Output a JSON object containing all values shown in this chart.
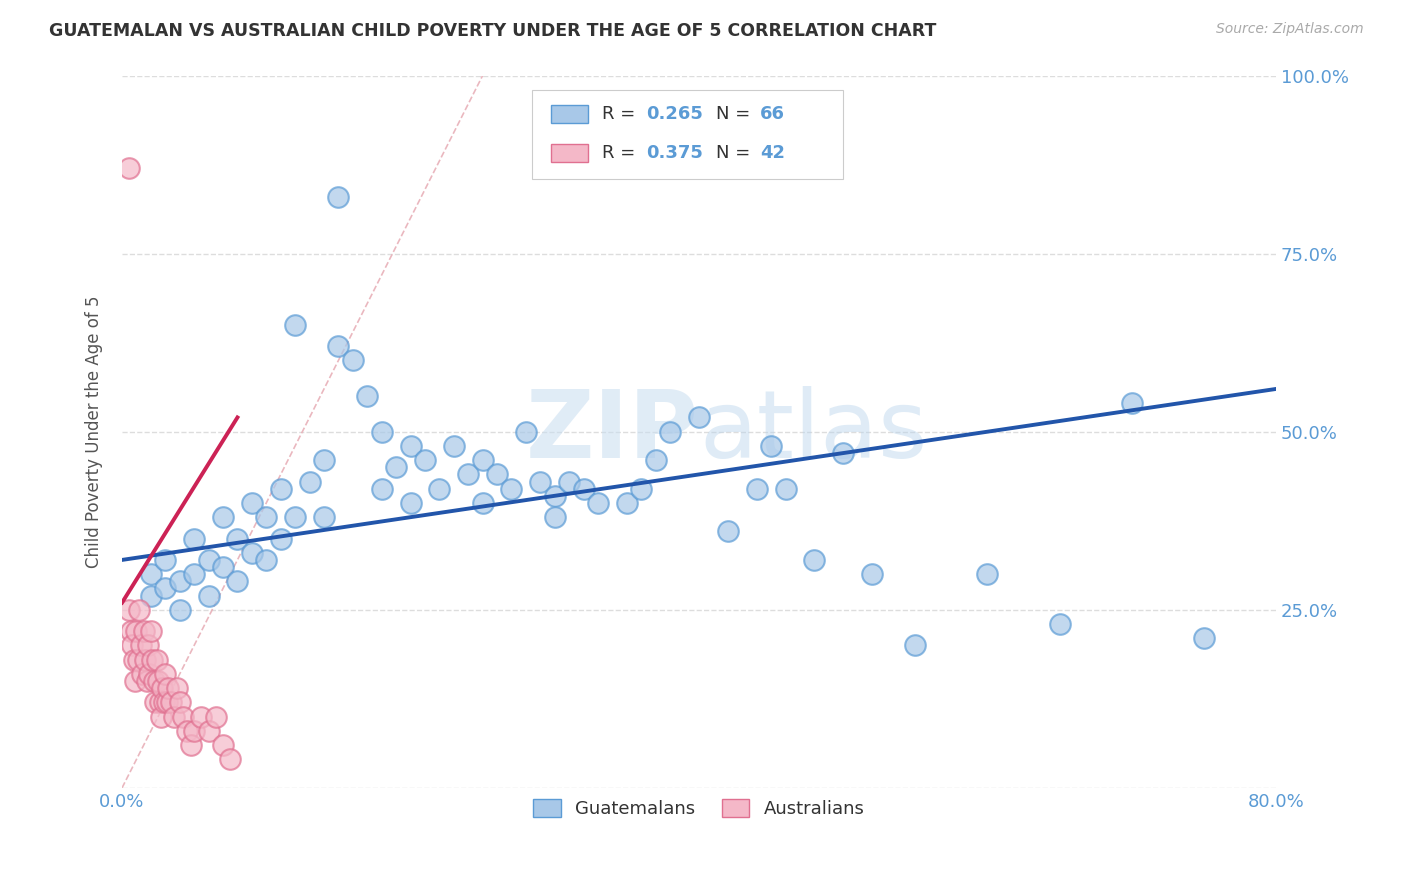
{
  "title": "GUATEMALAN VS AUSTRALIAN CHILD POVERTY UNDER THE AGE OF 5 CORRELATION CHART",
  "source": "Source: ZipAtlas.com",
  "ylabel": "Child Poverty Under the Age of 5",
  "xlim": [
    0.0,
    0.8
  ],
  "ylim": [
    0.0,
    1.0
  ],
  "xtick_positions": [
    0.0,
    0.1,
    0.2,
    0.3,
    0.4,
    0.5,
    0.6,
    0.7,
    0.8
  ],
  "xticklabels": [
    "0.0%",
    "",
    "",
    "",
    "",
    "",
    "",
    "",
    "80.0%"
  ],
  "ytick_positions": [
    0.0,
    0.25,
    0.5,
    0.75,
    1.0
  ],
  "yticklabels_right": [
    "",
    "25.0%",
    "50.0%",
    "75.0%",
    "100.0%"
  ],
  "blue_face": "#a8c8e8",
  "blue_edge": "#5b9bd5",
  "pink_face": "#f4b8c8",
  "pink_edge": "#e07090",
  "blue_line_color": "#2255aa",
  "pink_line_color": "#cc2255",
  "diag_line_color": "#e8b0b8",
  "grid_color": "#dddddd",
  "axis_tick_color": "#5b9bd5",
  "watermark_color": "#c8ddf0",
  "blue_r": "0.265",
  "blue_n": "66",
  "pink_r": "0.375",
  "pink_n": "42",
  "blue_x": [
    0.02,
    0.02,
    0.03,
    0.03,
    0.04,
    0.04,
    0.05,
    0.05,
    0.06,
    0.06,
    0.07,
    0.07,
    0.08,
    0.08,
    0.09,
    0.09,
    0.1,
    0.1,
    0.11,
    0.11,
    0.12,
    0.12,
    0.13,
    0.14,
    0.14,
    0.15,
    0.15,
    0.16,
    0.17,
    0.18,
    0.18,
    0.19,
    0.2,
    0.2,
    0.21,
    0.22,
    0.23,
    0.24,
    0.25,
    0.25,
    0.26,
    0.27,
    0.28,
    0.29,
    0.3,
    0.3,
    0.31,
    0.32,
    0.33,
    0.35,
    0.36,
    0.37,
    0.38,
    0.4,
    0.42,
    0.44,
    0.45,
    0.46,
    0.48,
    0.5,
    0.52,
    0.55,
    0.6,
    0.65,
    0.7,
    0.75
  ],
  "blue_y": [
    0.3,
    0.27,
    0.32,
    0.28,
    0.29,
    0.25,
    0.35,
    0.3,
    0.32,
    0.27,
    0.38,
    0.31,
    0.35,
    0.29,
    0.4,
    0.33,
    0.38,
    0.32,
    0.42,
    0.35,
    0.65,
    0.38,
    0.43,
    0.46,
    0.38,
    0.83,
    0.62,
    0.6,
    0.55,
    0.5,
    0.42,
    0.45,
    0.48,
    0.4,
    0.46,
    0.42,
    0.48,
    0.44,
    0.46,
    0.4,
    0.44,
    0.42,
    0.5,
    0.43,
    0.41,
    0.38,
    0.43,
    0.42,
    0.4,
    0.4,
    0.42,
    0.46,
    0.5,
    0.52,
    0.36,
    0.42,
    0.48,
    0.42,
    0.32,
    0.47,
    0.3,
    0.2,
    0.3,
    0.23,
    0.54,
    0.21
  ],
  "pink_x": [
    0.005,
    0.006,
    0.007,
    0.008,
    0.009,
    0.01,
    0.011,
    0.012,
    0.013,
    0.014,
    0.015,
    0.016,
    0.017,
    0.018,
    0.019,
    0.02,
    0.021,
    0.022,
    0.023,
    0.024,
    0.025,
    0.026,
    0.027,
    0.028,
    0.029,
    0.03,
    0.031,
    0.032,
    0.034,
    0.036,
    0.038,
    0.04,
    0.042,
    0.045,
    0.048,
    0.05,
    0.055,
    0.06,
    0.065,
    0.07,
    0.005,
    0.075
  ],
  "pink_y": [
    0.25,
    0.22,
    0.2,
    0.18,
    0.15,
    0.22,
    0.18,
    0.25,
    0.2,
    0.16,
    0.22,
    0.18,
    0.15,
    0.2,
    0.16,
    0.22,
    0.18,
    0.15,
    0.12,
    0.18,
    0.15,
    0.12,
    0.1,
    0.14,
    0.12,
    0.16,
    0.12,
    0.14,
    0.12,
    0.1,
    0.14,
    0.12,
    0.1,
    0.08,
    0.06,
    0.08,
    0.1,
    0.08,
    0.1,
    0.06,
    0.87,
    0.04
  ]
}
